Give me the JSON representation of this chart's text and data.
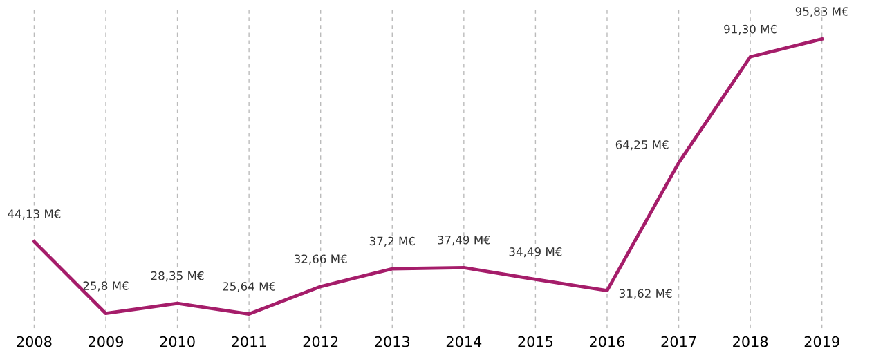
{
  "chart_data": {
    "type": "line",
    "categories": [
      "2008",
      "2009",
      "2010",
      "2011",
      "2012",
      "2013",
      "2014",
      "2015",
      "2016",
      "2017",
      "2018",
      "2019"
    ],
    "series": [
      {
        "color": "#a51d6a",
        "values": [
          44.13,
          25.8,
          28.35,
          25.64,
          32.66,
          37.2,
          37.49,
          34.49,
          31.62,
          64.25,
          91.3,
          95.83
        ],
        "value_labels": [
          "44,13 M€",
          "25,8 M€",
          "28,35 M€",
          "25,64 M€",
          "32,66 M€",
          "37,2 M€",
          "37,49 M€",
          "34,49 M€",
          "31,62 M€",
          "64,25 M€",
          "91,30 M€",
          "95,83 M€"
        ]
      }
    ],
    "ylim": [
      22,
      104
    ],
    "grid": "x",
    "tick_labels": "x",
    "line_style": "solid",
    "marker": "none"
  }
}
